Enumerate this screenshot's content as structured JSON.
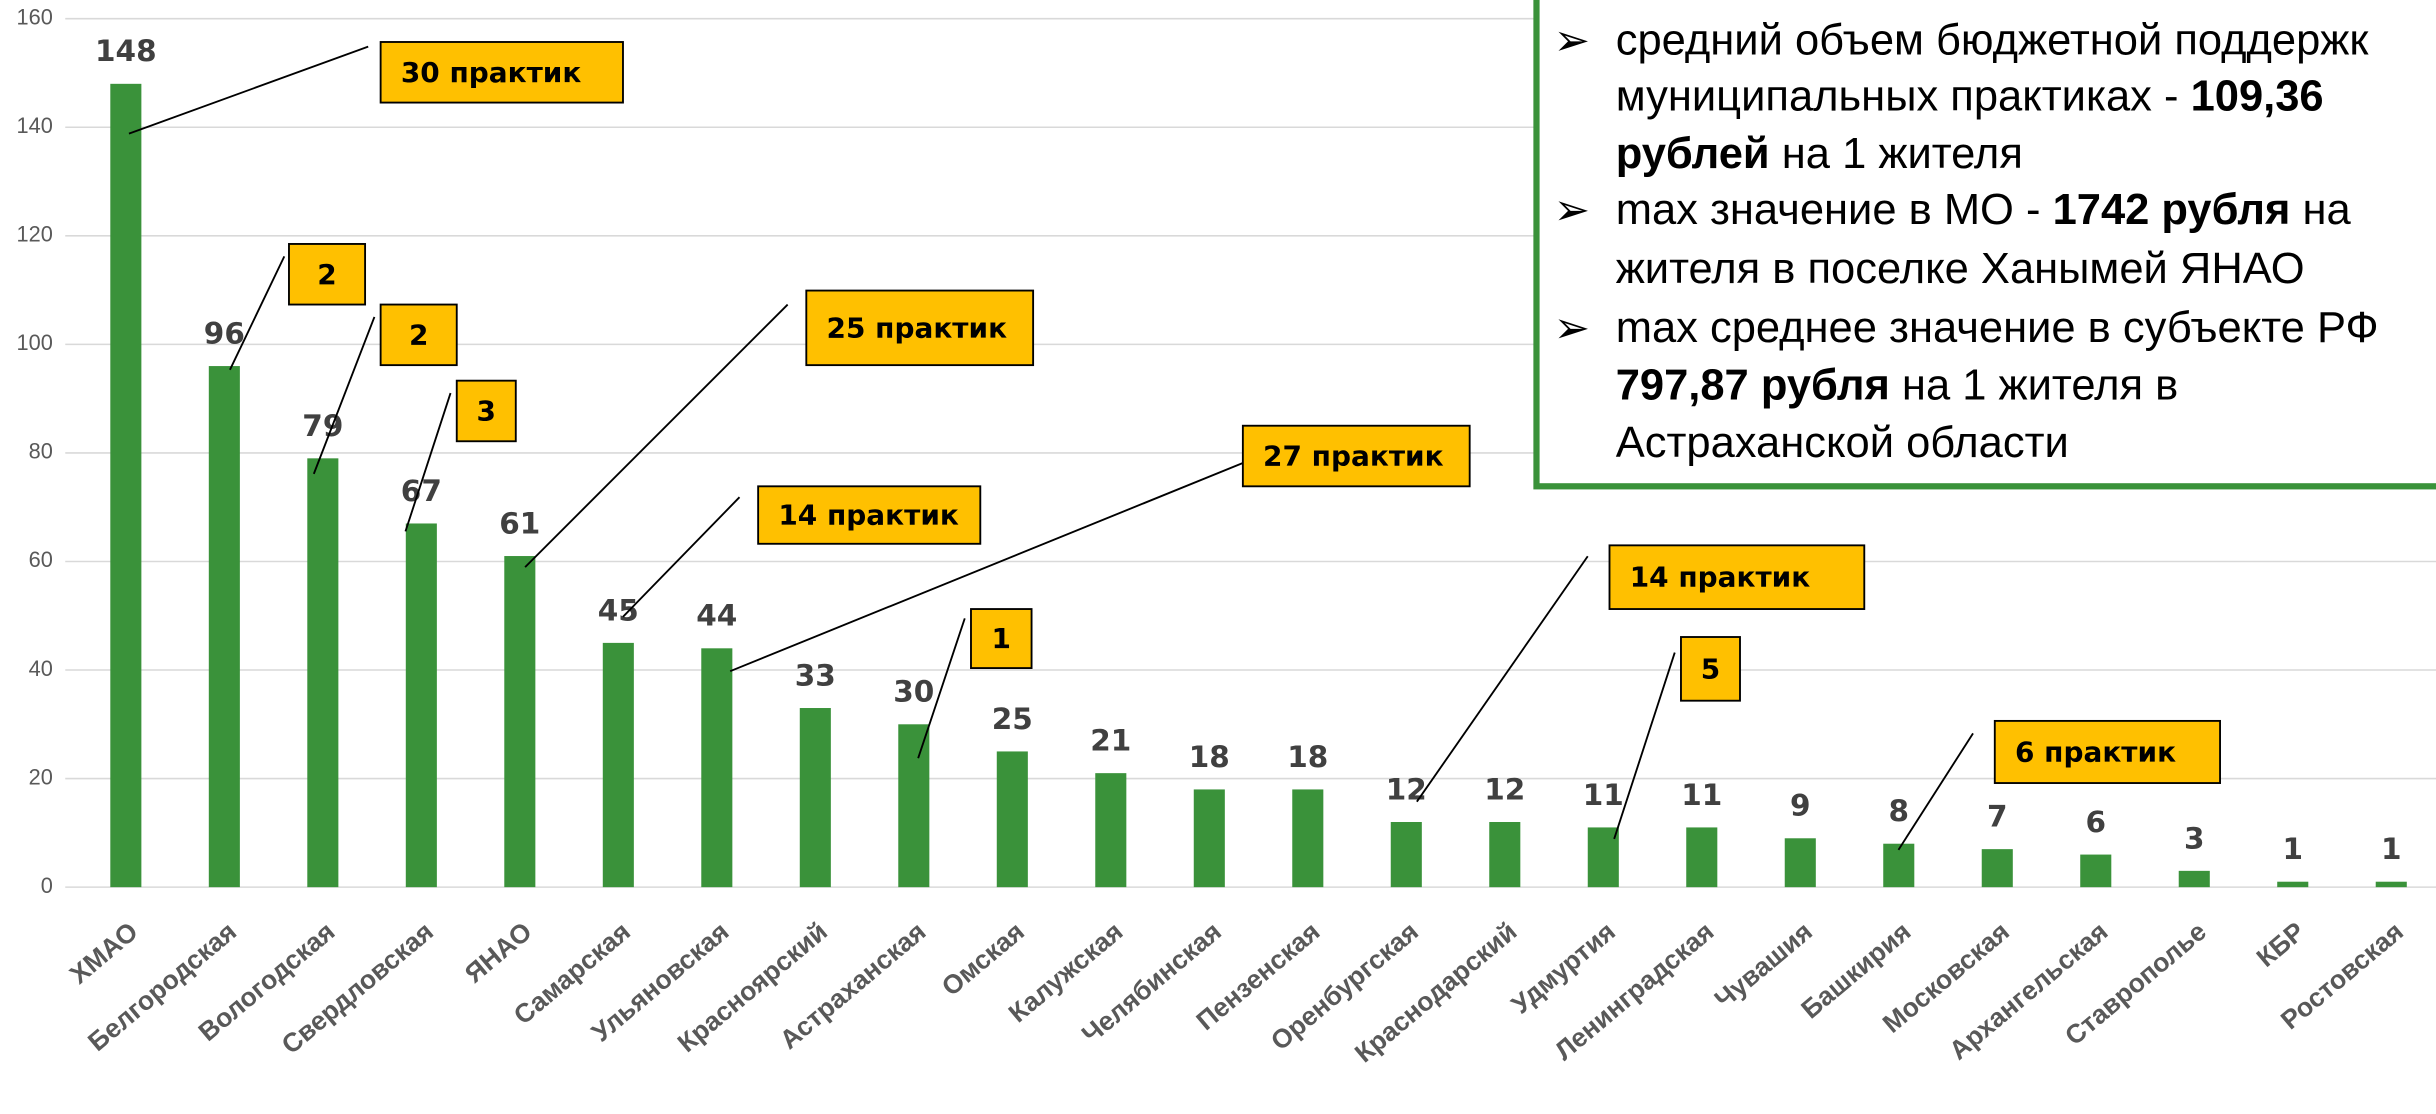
{
  "chart_data": {
    "type": "bar",
    "categories": [
      "ХМАО",
      "Белгородская",
      "Вологодская",
      "Свердловская",
      "ЯНАО",
      "Самарская",
      "Ульяновская",
      "Красноярский",
      "Астраханская",
      "Омская",
      "Калужская",
      "Челябинская",
      "Пензенская",
      "Оренбургская",
      "Краснодарский",
      "Удмуртия",
      "Ленинградская",
      "Чувашия",
      "Башкирия",
      "Московская",
      "Архангельская",
      "Ставрополье",
      "КБР",
      "Ростовская"
    ],
    "values": [
      148,
      96,
      79,
      67,
      61,
      45,
      44,
      33,
      30,
      25,
      21,
      18,
      18,
      12,
      12,
      11,
      11,
      9,
      8,
      7,
      6,
      3,
      1,
      1
    ],
    "color": "#3a923a",
    "ylim": [
      0,
      160
    ],
    "yticks": [
      0,
      20,
      40,
      60,
      80,
      100,
      120,
      140,
      160
    ],
    "grid": true,
    "annotations": [
      "30 практик",
      "2",
      "2",
      "3",
      "25 практик",
      "14 практик",
      "27 практик",
      "1",
      "14 практик",
      "5",
      "6 практик"
    ],
    "info_box": {
      "items": [
        [
          [
            {
              "text": "средний объем бюджетной поддержк",
              "bold": false
            }
          ],
          [
            {
              "text": "муниципальных практиках - ",
              "bold": false
            },
            {
              "text": "109,36",
              "bold": true
            }
          ],
          [
            {
              "text": "рублей",
              "bold": true
            },
            {
              "text": " на 1 жителя",
              "bold": false
            }
          ]
        ],
        [
          [
            {
              "text": "max значение в МО - ",
              "bold": false
            },
            {
              "text": "1742 рубля",
              "bold": true
            },
            {
              "text": " на",
              "bold": false
            }
          ],
          [
            {
              "text": "жителя в поселке Ханымей ЯНАО",
              "bold": false
            }
          ]
        ],
        [
          [
            {
              "text": "max среднее значение в субъекте РФ",
              "bold": false
            }
          ],
          [
            {
              "text": "797,87 рубля",
              "bold": true
            },
            {
              "text": " на 1 жителя в",
              "bold": false
            }
          ],
          [
            {
              "text": "Астраханской области",
              "bold": false
            }
          ]
        ]
      ]
    }
  }
}
